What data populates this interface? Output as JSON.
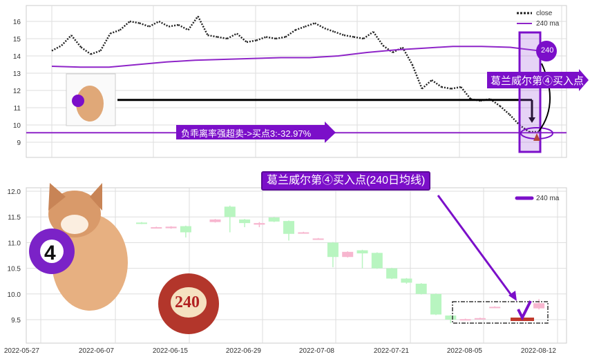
{
  "colors": {
    "accent": "#7b0fc9",
    "ma": "#8e24c8",
    "up": "#b8f5c0",
    "down": "#f7b6cf",
    "grid": "#dddddd"
  },
  "annotations": {
    "top_arrow": "葛兰威尔第④买入点",
    "deviation": "负乖离率强超卖->买点3:-32.97%",
    "ball_top": "240",
    "bottom_title": "葛兰威尔第④买入点(240日均线)",
    "ball_num": "4",
    "ball_240": "240"
  },
  "chart_data": [
    {
      "type": "line",
      "ylim": [
        8.1,
        16.9
      ],
      "yticks": [
        9,
        10,
        11,
        12,
        13,
        14,
        15,
        16
      ],
      "legend": {
        "placement": "top-right",
        "entries": [
          "close",
          "240 ma"
        ]
      },
      "grid": true,
      "series": [
        {
          "name": "close",
          "values": [
            14.3,
            14.6,
            15.2,
            14.5,
            14.1,
            14.3,
            15.3,
            15.5,
            16.0,
            15.9,
            15.7,
            16.0,
            15.7,
            15.8,
            15.5,
            16.3,
            15.2,
            15.1,
            15.0,
            15.3,
            14.8,
            14.9,
            15.1,
            15.0,
            15.1,
            15.5,
            15.7,
            15.9,
            15.6,
            15.4,
            15.2,
            15.1,
            15.0,
            15.4,
            14.6,
            14.2,
            14.5,
            13.5,
            12.1,
            12.6,
            12.2,
            12.1,
            12.2,
            11.5,
            11.4,
            11.5,
            11.1,
            10.6,
            10.0,
            9.6,
            9.6
          ]
        },
        {
          "name": "240 ma",
          "values": [
            13.4,
            13.35,
            13.35,
            13.5,
            13.65,
            13.75,
            13.8,
            13.85,
            13.9,
            13.9,
            14.0,
            14.2,
            14.35,
            14.45,
            14.55,
            14.55,
            14.5,
            14.3
          ]
        }
      ],
      "hline": 9.55,
      "support_level": 11.45
    },
    {
      "type": "candlestick",
      "ylim": [
        9.05,
        12.05
      ],
      "yticks": [
        9.5,
        10.0,
        10.5,
        11.0,
        11.5,
        12.0
      ],
      "xticks": [
        "2022-05-27",
        "2022-06-07",
        "2022-06-15",
        "2022-06-29",
        "2022-07-08",
        "2022-07-21",
        "2022-08-05",
        "2022-08-12"
      ],
      "legend": {
        "placement": "top-right",
        "entries": [
          "240 ma"
        ]
      },
      "grid": true,
      "candles": [
        [
          11.39,
          11.37,
          11.4,
          11.36
        ],
        [
          11.3,
          11.3,
          11.31,
          11.29
        ],
        [
          11.28,
          11.31,
          11.32,
          11.27
        ],
        [
          11.32,
          11.2,
          11.33,
          11.1
        ],
        null,
        [
          11.4,
          11.45,
          11.46,
          11.39
        ],
        [
          11.7,
          11.5,
          11.72,
          11.2
        ],
        [
          11.45,
          11.38,
          11.46,
          11.3
        ],
        [
          11.35,
          11.38,
          11.4,
          11.3
        ],
        [
          11.49,
          11.41,
          11.5,
          11.4
        ],
        [
          11.42,
          11.17,
          11.43,
          11.04
        ],
        [
          11.2,
          11.2,
          11.21,
          11.19
        ],
        [
          11.08,
          11.08,
          11.09,
          11.07
        ],
        [
          11.0,
          10.72,
          11.01,
          10.52
        ],
        [
          10.72,
          10.82,
          10.83,
          10.71
        ],
        [
          10.85,
          10.79,
          10.86,
          10.5
        ],
        [
          10.8,
          10.5,
          10.81,
          10.49
        ],
        [
          10.5,
          10.3,
          10.51,
          10.29
        ],
        [
          10.3,
          10.22,
          10.31,
          10.2
        ],
        [
          10.2,
          10.0,
          10.21,
          9.99
        ],
        [
          10.0,
          9.6,
          10.01,
          9.59
        ],
        [
          9.58,
          9.5,
          9.59,
          9.43
        ],
        [
          9.5,
          9.51,
          9.52,
          9.49
        ],
        [
          9.51,
          9.53,
          9.54,
          9.5
        ],
        [
          9.75,
          9.75,
          9.76,
          9.74
        ],
        null,
        [
          9.53,
          9.5,
          9.53,
          9.5
        ],
        [
          9.72,
          9.82,
          9.9,
          9.7
        ]
      ]
    }
  ]
}
